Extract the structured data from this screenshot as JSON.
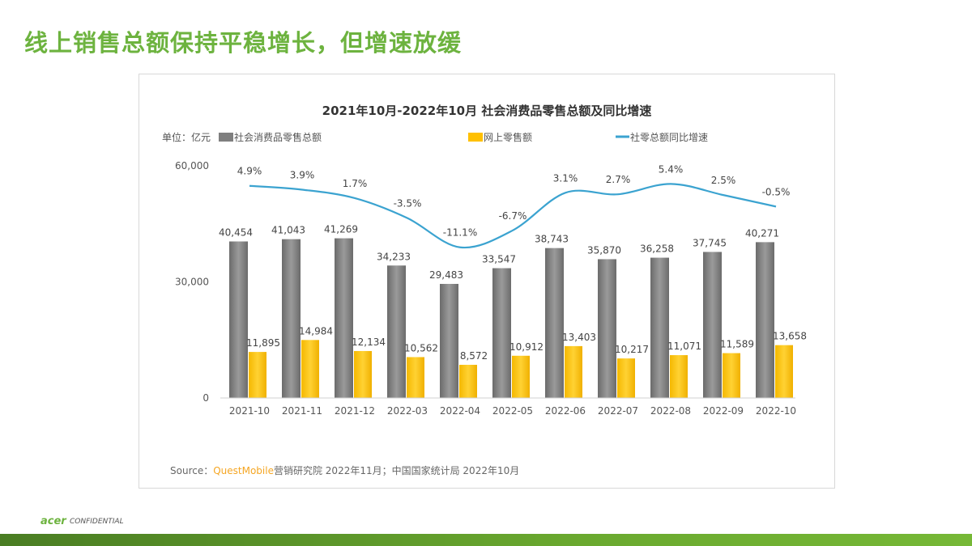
{
  "slide": {
    "title": "线上销售总额保持平稳增长，但增速放缓",
    "footer_logo": "acer",
    "footer_text": "CONFIDENTIAL"
  },
  "chart_data": {
    "type": "bar",
    "title": "2021年10月-2022年10月 社会消费品零售总额及同比增速",
    "unit_label": "单位：亿元",
    "categories": [
      "2021-10",
      "2021-11",
      "2021-12",
      "2022-03",
      "2022-04",
      "2022-05",
      "2022-06",
      "2022-07",
      "2022-08",
      "2022-09",
      "2022-10"
    ],
    "ylim": [
      0,
      60000
    ],
    "yticks": [
      "0",
      "30,000",
      "60,000"
    ],
    "ytick_values": [
      0,
      30000,
      60000
    ],
    "legend_position": "top",
    "grid": false,
    "series": [
      {
        "name": "社会消费品零售总额",
        "type": "bar",
        "color": "#7f7f7f",
        "values": [
          40454,
          41043,
          41269,
          34233,
          29483,
          33547,
          38743,
          35870,
          36258,
          37745,
          40271
        ],
        "labels": [
          "40,454",
          "41,043",
          "41,269",
          "34,233",
          "29,483",
          "33,547",
          "38,743",
          "35,870",
          "36,258",
          "37,745",
          "40,271"
        ]
      },
      {
        "name": "网上零售额",
        "type": "bar",
        "color": "#ffc000",
        "values": [
          11895,
          14984,
          12134,
          10562,
          8572,
          10912,
          13403,
          10217,
          11071,
          11589,
          13658
        ],
        "labels": [
          "11,895",
          "14,984",
          "12,134",
          "10,562",
          "8,572",
          "10,912",
          "13,403",
          "10,217",
          "11,071",
          "11,589",
          "13,658"
        ]
      },
      {
        "name": "社零总额同比增速",
        "type": "line",
        "color": "#3ba3d0",
        "axis": "secondary",
        "values": [
          4.9,
          3.9,
          1.7,
          -3.5,
          -11.1,
          -6.7,
          3.1,
          2.7,
          5.4,
          2.5,
          -0.5
        ],
        "labels": [
          "4.9%",
          "3.9%",
          "1.7%",
          "-3.5%",
          "-11.1%",
          "-6.7%",
          "3.1%",
          "2.7%",
          "5.4%",
          "2.5%",
          "-0.5%"
        ]
      }
    ],
    "source": {
      "prefix": "Source：",
      "brand": "QuestMobile",
      "rest": "营销研究院 2022年11月；中国国家统计局  2022年10月",
      "brand_color": "#f5a623"
    }
  }
}
